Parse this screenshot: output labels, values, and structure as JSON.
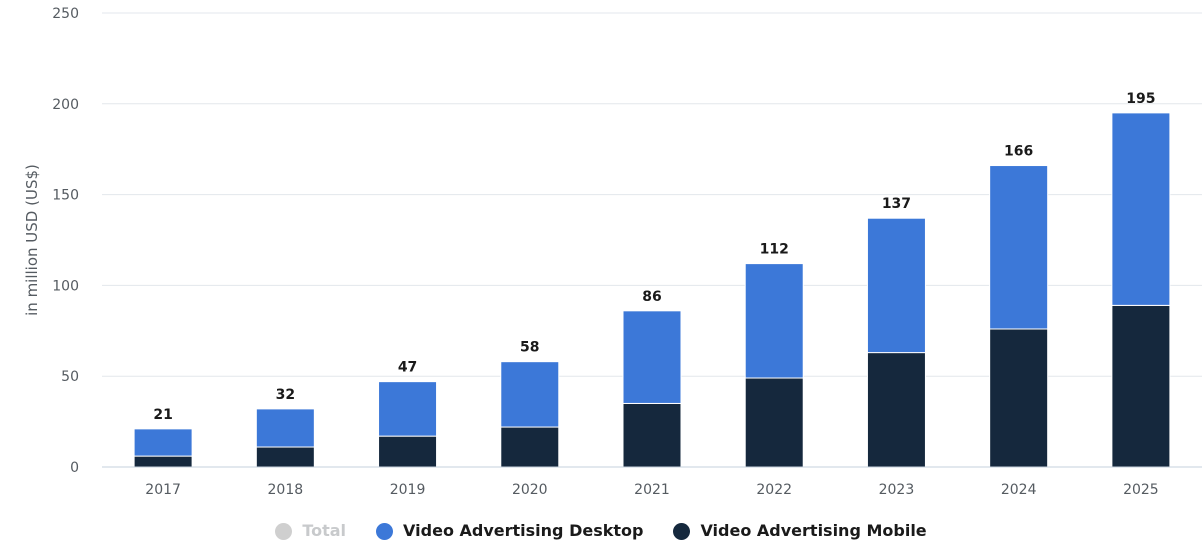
{
  "chart_data": {
    "type": "bar",
    "stacked": true,
    "ylabel": "in million USD (US$)",
    "xlabel": "",
    "ylim": [
      0,
      250
    ],
    "yticks": [
      0,
      50,
      100,
      150,
      200,
      250
    ],
    "grid": true,
    "legend_position": "bottom",
    "categories": [
      "2017",
      "2018",
      "2019",
      "2020",
      "2021",
      "2022",
      "2023",
      "2024",
      "2025"
    ],
    "totals": [
      21,
      32,
      47,
      58,
      86,
      112,
      137,
      166,
      195
    ],
    "series": [
      {
        "name": "Video Advertising Mobile",
        "color": "#15283d",
        "values": [
          6,
          11,
          17,
          22,
          35,
          49,
          63,
          76,
          89
        ]
      },
      {
        "name": "Video Advertising Desktop",
        "color": "#3c78d8",
        "values": [
          15,
          21,
          30,
          36,
          51,
          63,
          74,
          90,
          106
        ]
      }
    ],
    "legend": [
      {
        "name": "Total",
        "color": "#cfcfcf",
        "active": false
      },
      {
        "name": "Video Advertising Desktop",
        "color": "#3c78d8",
        "active": true
      },
      {
        "name": "Video Advertising Mobile",
        "color": "#15283d",
        "active": true
      }
    ]
  }
}
